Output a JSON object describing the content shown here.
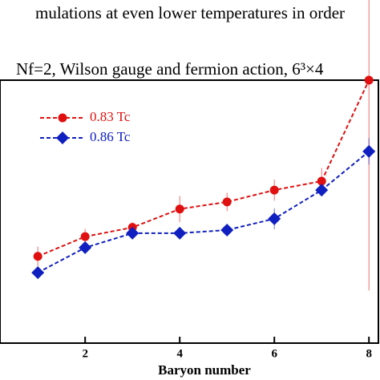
{
  "context_text": "mulations at even lower temperatures in order",
  "chart_data": {
    "type": "line",
    "title": "Nf=2, Wilson gauge and fermion action, 6³×4",
    "x_label": "Baryon number",
    "x": [
      1,
      2,
      3,
      4,
      5,
      6,
      7,
      8
    ],
    "xlim": [
      0.2,
      8.2
    ],
    "xticks": [
      2,
      4,
      6,
      8
    ],
    "ylim": [
      0,
      1
    ],
    "legend": "upper left",
    "series": [
      {
        "name": "0.83 Tc",
        "color": "#e01010",
        "marker": "circle",
        "values": [
          0.33,
          0.405,
          0.44,
          0.51,
          0.537,
          0.582,
          0.616,
          1.0
        ],
        "errors": [
          0.037,
          0.03,
          0.02,
          0.05,
          0.035,
          0.04,
          0.05,
          0.8
        ]
      },
      {
        "name": "0.86 Tc",
        "color": "#1020c0",
        "marker": "diamond",
        "values": [
          0.268,
          0.363,
          0.418,
          0.418,
          0.43,
          0.473,
          0.582,
          0.729
        ],
        "errors": [
          0.01,
          0.02,
          0.02,
          0.01,
          0.02,
          0.04,
          0.02,
          0.05
        ]
      }
    ]
  }
}
